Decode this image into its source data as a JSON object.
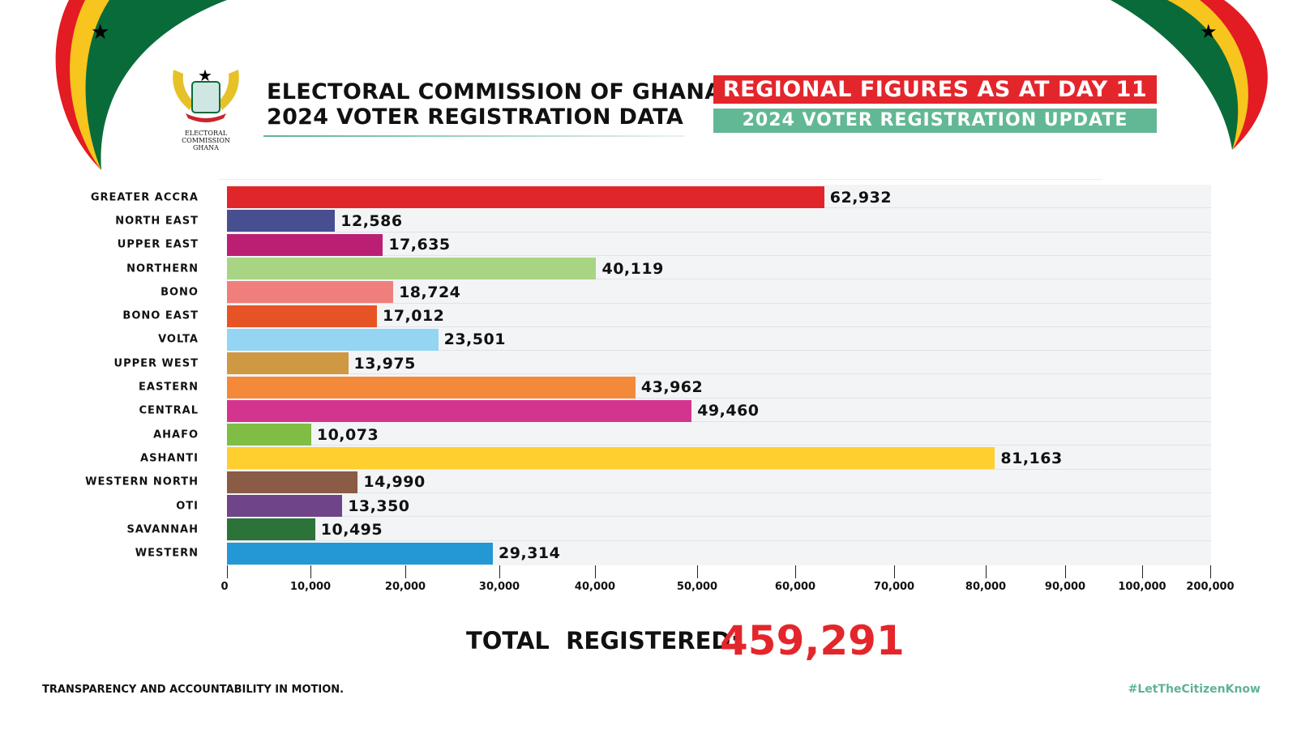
{
  "header": {
    "title_line1": "ELECTORAL COMMISSION OF GHANA",
    "title_line2": "2024 VOTER REGISTRATION DATA",
    "logo_text": "ELECTORAL COMMISSION GHANA",
    "banner_red": "REGIONAL FIGURES AS AT DAY 11",
    "banner_green": "2024 VOTER REGISTRATION UPDATE"
  },
  "colors": {
    "red": "#e3262c",
    "green": "#62b894",
    "flag_red": "#e31b23",
    "flag_gold": "#f7c51d",
    "flag_green": "#0a6b3a"
  },
  "chart_data": {
    "type": "bar",
    "orientation": "horizontal",
    "categories": [
      "GREATER ACCRA",
      "NORTH EAST",
      "UPPER EAST",
      "NORTHERN",
      "BONO",
      "BONO EAST",
      "VOLTA",
      "UPPER WEST",
      "EASTERN",
      "CENTRAL",
      "AHAFO",
      "ASHANTI",
      "WESTERN NORTH",
      "OTI",
      "SAVANNAH",
      "WESTERN"
    ],
    "values": [
      62932,
      12586,
      17635,
      40119,
      18724,
      17012,
      23501,
      13975,
      43962,
      49460,
      10073,
      81163,
      14990,
      13350,
      10495,
      29314
    ],
    "value_labels": [
      "62,932",
      "12,586",
      "17,635",
      "40,119",
      "18,724",
      "17,012",
      "23,501",
      "13,975",
      "43,962",
      "49,460",
      "10,073",
      "81,163",
      "14,990",
      "13,350",
      "10,495",
      "29,314"
    ],
    "bar_colors": [
      "#e1262b",
      "#474f90",
      "#bb1f73",
      "#a8d484",
      "#f07f7c",
      "#e65325",
      "#93d5f2",
      "#cf9842",
      "#f5893a",
      "#d3358e",
      "#7fbd45",
      "#fecf2f",
      "#8a5b45",
      "#6f4489",
      "#2b7339",
      "#2398d5"
    ],
    "xticks": [
      0,
      10000,
      20000,
      30000,
      40000,
      50000,
      60000,
      70000,
      80000,
      90000,
      100000,
      200000
    ],
    "xtick_labels": [
      "0",
      "10,000",
      "20,000",
      "30,000",
      "40,000",
      "50,000",
      "60,000",
      "70,000",
      "80,000",
      "90,000",
      "100,000",
      "200,000"
    ],
    "xlim": [
      0,
      200000
    ],
    "grid": false,
    "title": "",
    "xlabel": "",
    "ylabel": ""
  },
  "total": {
    "label": "TOTAL  REGISTERED:",
    "value": "459,291"
  },
  "footer": {
    "left": "TRANSPARENCY AND ACCOUNTABILITY IN MOTION.",
    "right": "#LetTheCitizenKnow"
  }
}
